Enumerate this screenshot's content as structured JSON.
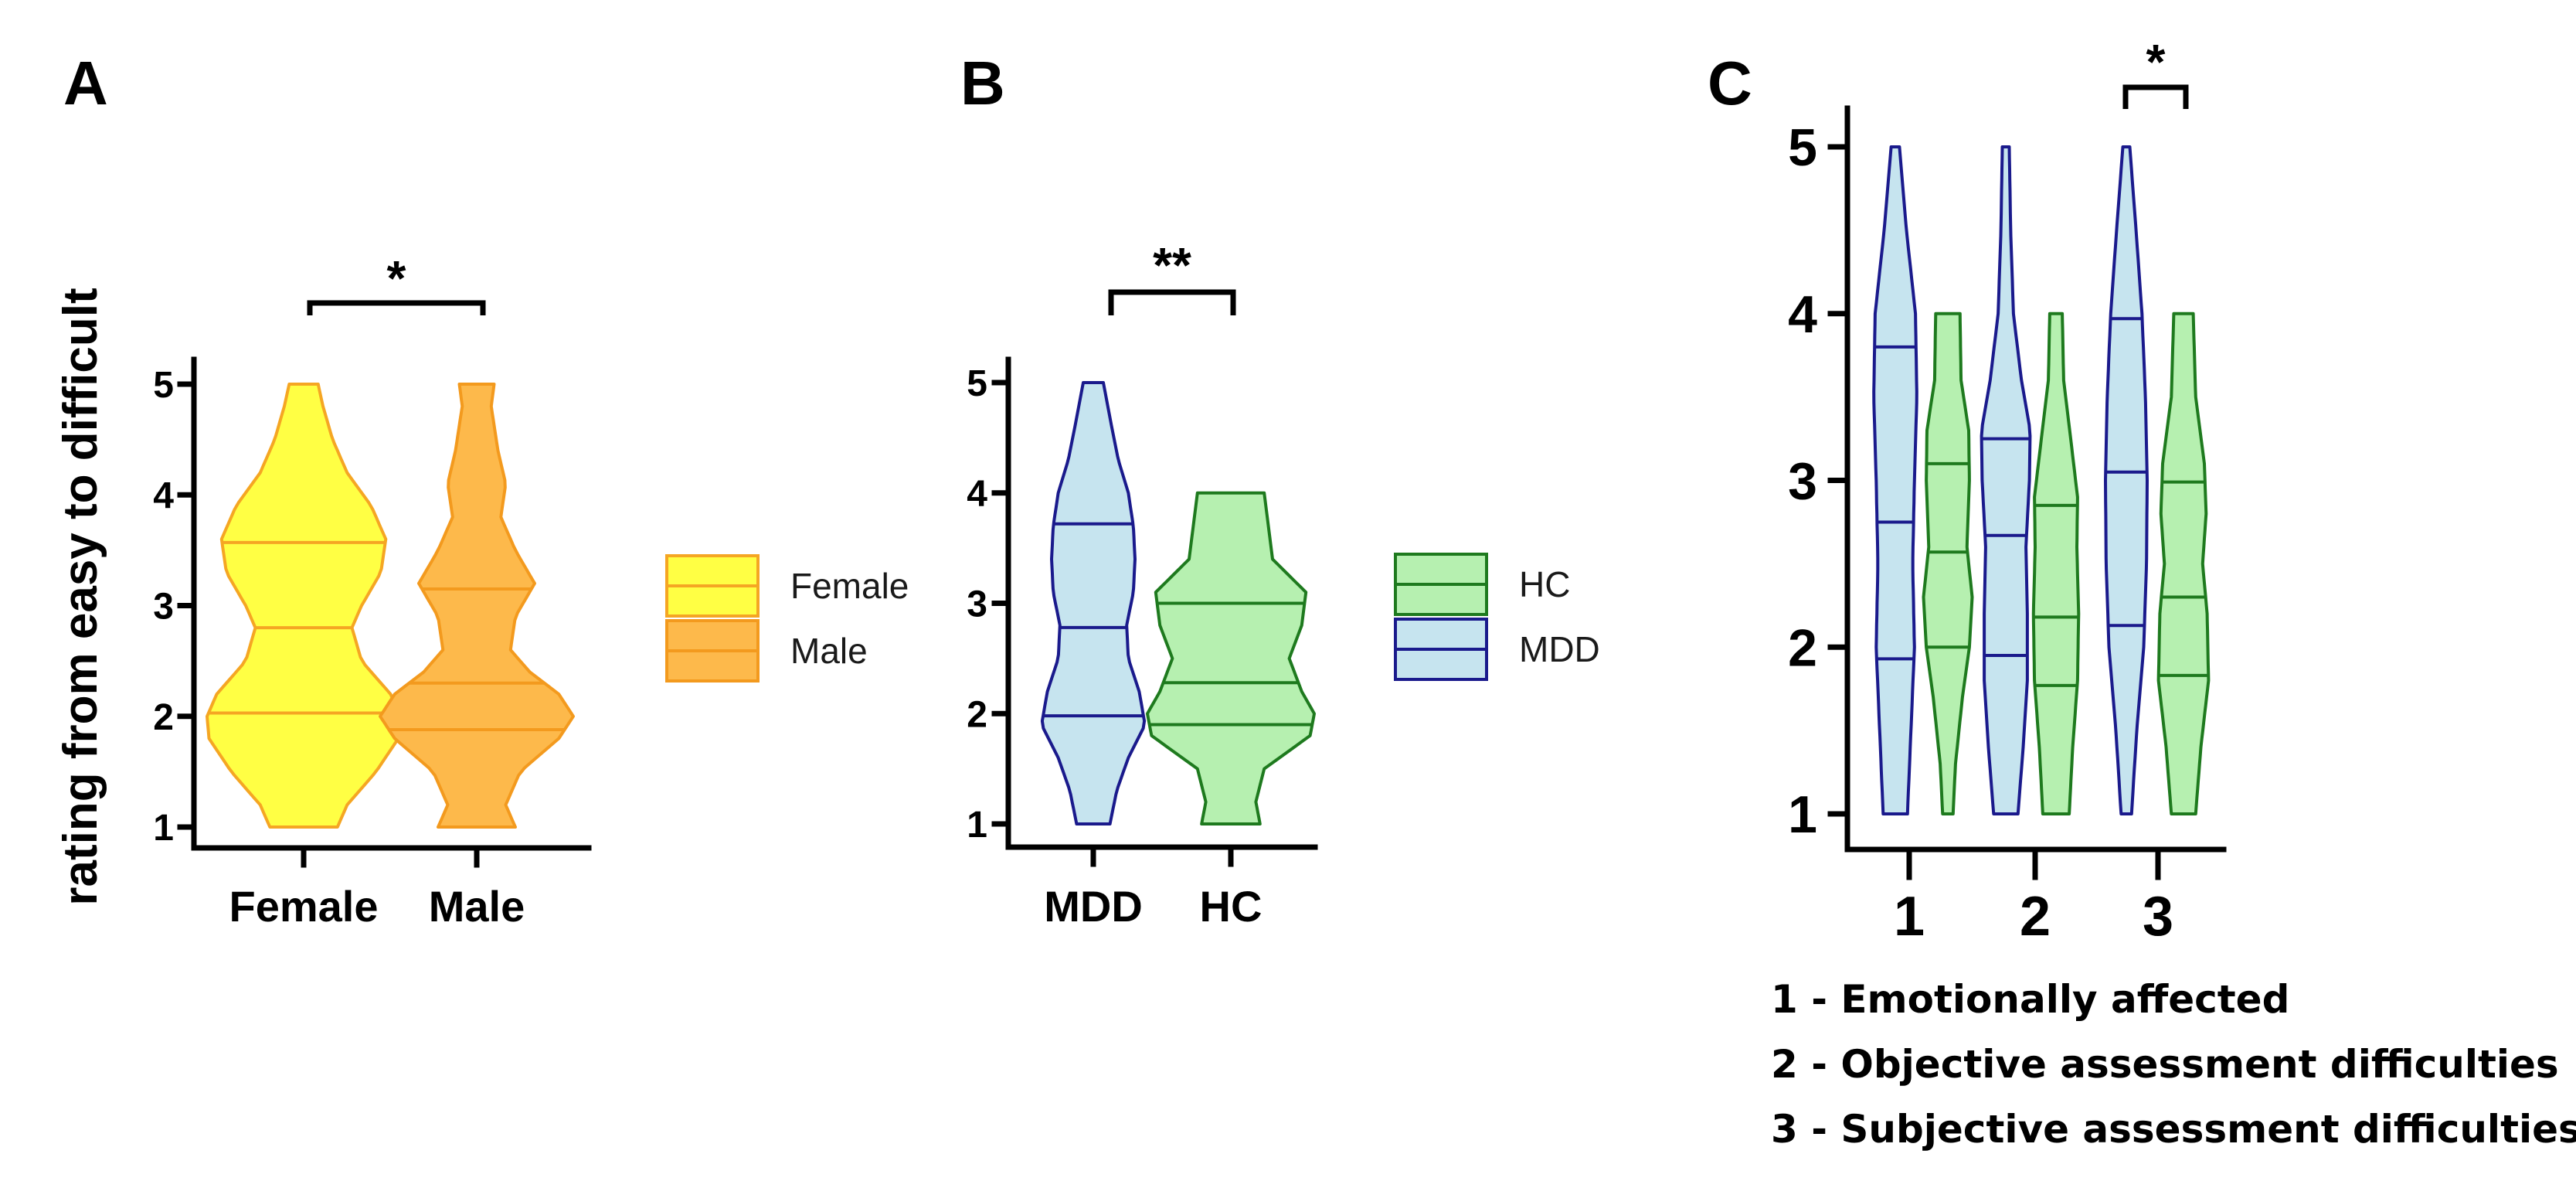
{
  "chart_data": [
    {
      "type": "violin",
      "panel": "A",
      "ylabel": "rating from easy to difficult",
      "yticks": [
        1,
        2,
        3,
        4,
        5
      ],
      "ylim": [
        1,
        5
      ],
      "categories": [
        "Female",
        "Male"
      ],
      "legend": [
        "Female",
        "Male"
      ],
      "legend_position": "right",
      "significance": {
        "between": [
          "Female",
          "Male"
        ],
        "label": "*"
      },
      "colors": {
        "Female": {
          "fill": "#FFFF44",
          "stroke": "#F5A623"
        },
        "Male": {
          "fill": "#FDB94B",
          "stroke": "#F39A1E"
        }
      },
      "series": [
        {
          "name": "Female",
          "min": 1,
          "max": 5,
          "quartiles": [
            2.03,
            2.8,
            3.57
          ],
          "density": [
            [
              1,
              0.35
            ],
            [
              1.2,
              0.45
            ],
            [
              1.5,
              0.75
            ],
            [
              1.8,
              0.98
            ],
            [
              2.0,
              1.0
            ],
            [
              2.2,
              0.9
            ],
            [
              2.5,
              0.6
            ],
            [
              2.8,
              0.5
            ],
            [
              3.0,
              0.6
            ],
            [
              3.3,
              0.8
            ],
            [
              3.6,
              0.85
            ],
            [
              3.9,
              0.7
            ],
            [
              4.2,
              0.45
            ],
            [
              4.5,
              0.3
            ],
            [
              4.8,
              0.2
            ],
            [
              5,
              0.15
            ]
          ]
        },
        {
          "name": "Male",
          "min": 1,
          "max": 5,
          "quartiles": [
            1.88,
            2.3,
            3.15
          ],
          "density": [
            [
              1,
              0.4
            ],
            [
              1.2,
              0.3
            ],
            [
              1.5,
              0.45
            ],
            [
              1.8,
              0.85
            ],
            [
              2.0,
              1.0
            ],
            [
              2.2,
              0.85
            ],
            [
              2.4,
              0.55
            ],
            [
              2.6,
              0.35
            ],
            [
              2.9,
              0.4
            ],
            [
              3.2,
              0.6
            ],
            [
              3.5,
              0.4
            ],
            [
              3.8,
              0.25
            ],
            [
              4.1,
              0.3
            ],
            [
              4.4,
              0.22
            ],
            [
              4.8,
              0.15
            ],
            [
              5,
              0.18
            ]
          ]
        }
      ]
    },
    {
      "type": "violin",
      "panel": "B",
      "yticks": [
        1,
        2,
        3,
        4,
        5
      ],
      "ylim": [
        1,
        5
      ],
      "categories": [
        "MDD",
        "HC"
      ],
      "legend": [
        "HC",
        "MDD"
      ],
      "legend_position": "right",
      "significance": {
        "between": [
          "MDD",
          "HC"
        ],
        "label": "**"
      },
      "colors": {
        "MDD": {
          "fill": "#C6E4EF",
          "stroke": "#1A1A8C"
        },
        "HC": {
          "fill": "#B6F0B0",
          "stroke": "#1E7A1E"
        }
      },
      "series": [
        {
          "name": "MDD",
          "min": 1,
          "max": 5,
          "quartiles": [
            1.98,
            2.78,
            3.72
          ],
          "density": [
            [
              1,
              0.2
            ],
            [
              1.3,
              0.28
            ],
            [
              1.6,
              0.42
            ],
            [
              1.9,
              0.62
            ],
            [
              2.2,
              0.55
            ],
            [
              2.5,
              0.42
            ],
            [
              2.8,
              0.4
            ],
            [
              3.1,
              0.48
            ],
            [
              3.4,
              0.5
            ],
            [
              3.7,
              0.48
            ],
            [
              4.0,
              0.42
            ],
            [
              4.3,
              0.3
            ],
            [
              4.6,
              0.22
            ],
            [
              5,
              0.12
            ]
          ]
        },
        {
          "name": "HC",
          "min": 1,
          "max": 4,
          "quartiles": [
            1.9,
            2.28,
            3.0
          ],
          "density": [
            [
              1,
              0.35
            ],
            [
              1.2,
              0.3
            ],
            [
              1.5,
              0.4
            ],
            [
              1.8,
              0.95
            ],
            [
              2.0,
              1.0
            ],
            [
              2.2,
              0.85
            ],
            [
              2.5,
              0.7
            ],
            [
              2.8,
              0.85
            ],
            [
              3.1,
              0.9
            ],
            [
              3.4,
              0.5
            ],
            [
              3.7,
              0.45
            ],
            [
              4,
              0.4
            ]
          ]
        }
      ]
    },
    {
      "type": "violin",
      "panel": "C",
      "yticks": [
        1,
        2,
        3,
        4,
        5
      ],
      "ylim": [
        1,
        5
      ],
      "categories": [
        "1",
        "2",
        "3"
      ],
      "significance": {
        "between": [
          "3 MDD",
          "3 HC"
        ],
        "label": "*"
      },
      "notes": [
        "1 - Emotionally affected",
        "2 - Objective assessment difficulties",
        "3 - Subjective assessment difficulties"
      ],
      "colors": {
        "MDD": {
          "fill": "#C6E4EF",
          "stroke": "#1A1A8C"
        },
        "HC": {
          "fill": "#B6F0B0",
          "stroke": "#1E7A1E"
        }
      },
      "series": [
        {
          "name": "MDD",
          "group": "1",
          "min": 1,
          "max": 5,
          "quartiles": [
            1.93,
            2.75,
            3.8
          ],
          "density": [
            [
              1,
              0.35
            ],
            [
              1.5,
              0.45
            ],
            [
              2.0,
              0.55
            ],
            [
              2.5,
              0.5
            ],
            [
              3.0,
              0.55
            ],
            [
              3.5,
              0.62
            ],
            [
              4.0,
              0.58
            ],
            [
              4.5,
              0.32
            ],
            [
              5,
              0.12
            ]
          ]
        },
        {
          "name": "HC",
          "group": "1",
          "min": 1,
          "max": 4,
          "quartiles": [
            2.0,
            2.57,
            3.1
          ],
          "density": [
            [
              1,
              0.15
            ],
            [
              1.3,
              0.22
            ],
            [
              1.7,
              0.42
            ],
            [
              2.0,
              0.62
            ],
            [
              2.3,
              0.7
            ],
            [
              2.6,
              0.55
            ],
            [
              3.0,
              0.62
            ],
            [
              3.3,
              0.6
            ],
            [
              3.6,
              0.38
            ],
            [
              4,
              0.35
            ]
          ]
        },
        {
          "name": "MDD",
          "group": "2",
          "min": 1,
          "max": 5,
          "quartiles": [
            1.95,
            2.67,
            3.25
          ],
          "density": [
            [
              1,
              0.35
            ],
            [
              1.4,
              0.5
            ],
            [
              1.8,
              0.62
            ],
            [
              2.2,
              0.62
            ],
            [
              2.6,
              0.58
            ],
            [
              3.0,
              0.68
            ],
            [
              3.3,
              0.7
            ],
            [
              3.6,
              0.45
            ],
            [
              4.0,
              0.22
            ],
            [
              4.5,
              0.14
            ],
            [
              5,
              0.1
            ]
          ]
        },
        {
          "name": "HC",
          "group": "2",
          "min": 1,
          "max": 4,
          "quartiles": [
            1.77,
            2.18,
            2.85
          ],
          "density": [
            [
              1,
              0.38
            ],
            [
              1.4,
              0.48
            ],
            [
              1.8,
              0.62
            ],
            [
              2.2,
              0.65
            ],
            [
              2.6,
              0.6
            ],
            [
              2.9,
              0.62
            ],
            [
              3.2,
              0.45
            ],
            [
              3.6,
              0.22
            ],
            [
              4,
              0.18
            ]
          ]
        },
        {
          "name": "MDD",
          "group": "3",
          "min": 1,
          "max": 5,
          "quartiles": [
            2.13,
            3.05,
            3.97
          ],
          "density": [
            [
              1,
              0.15
            ],
            [
              1.5,
              0.3
            ],
            [
              2.0,
              0.5
            ],
            [
              2.5,
              0.58
            ],
            [
              3.0,
              0.6
            ],
            [
              3.5,
              0.55
            ],
            [
              4.0,
              0.45
            ],
            [
              4.5,
              0.28
            ],
            [
              5,
              0.1
            ]
          ]
        },
        {
          "name": "HC",
          "group": "3",
          "min": 1,
          "max": 4,
          "quartiles": [
            1.83,
            2.3,
            2.99
          ],
          "density": [
            [
              1,
              0.35
            ],
            [
              1.4,
              0.5
            ],
            [
              1.8,
              0.72
            ],
            [
              2.2,
              0.68
            ],
            [
              2.5,
              0.55
            ],
            [
              2.8,
              0.65
            ],
            [
              3.1,
              0.6
            ],
            [
              3.5,
              0.35
            ],
            [
              4,
              0.28
            ]
          ]
        }
      ]
    }
  ]
}
